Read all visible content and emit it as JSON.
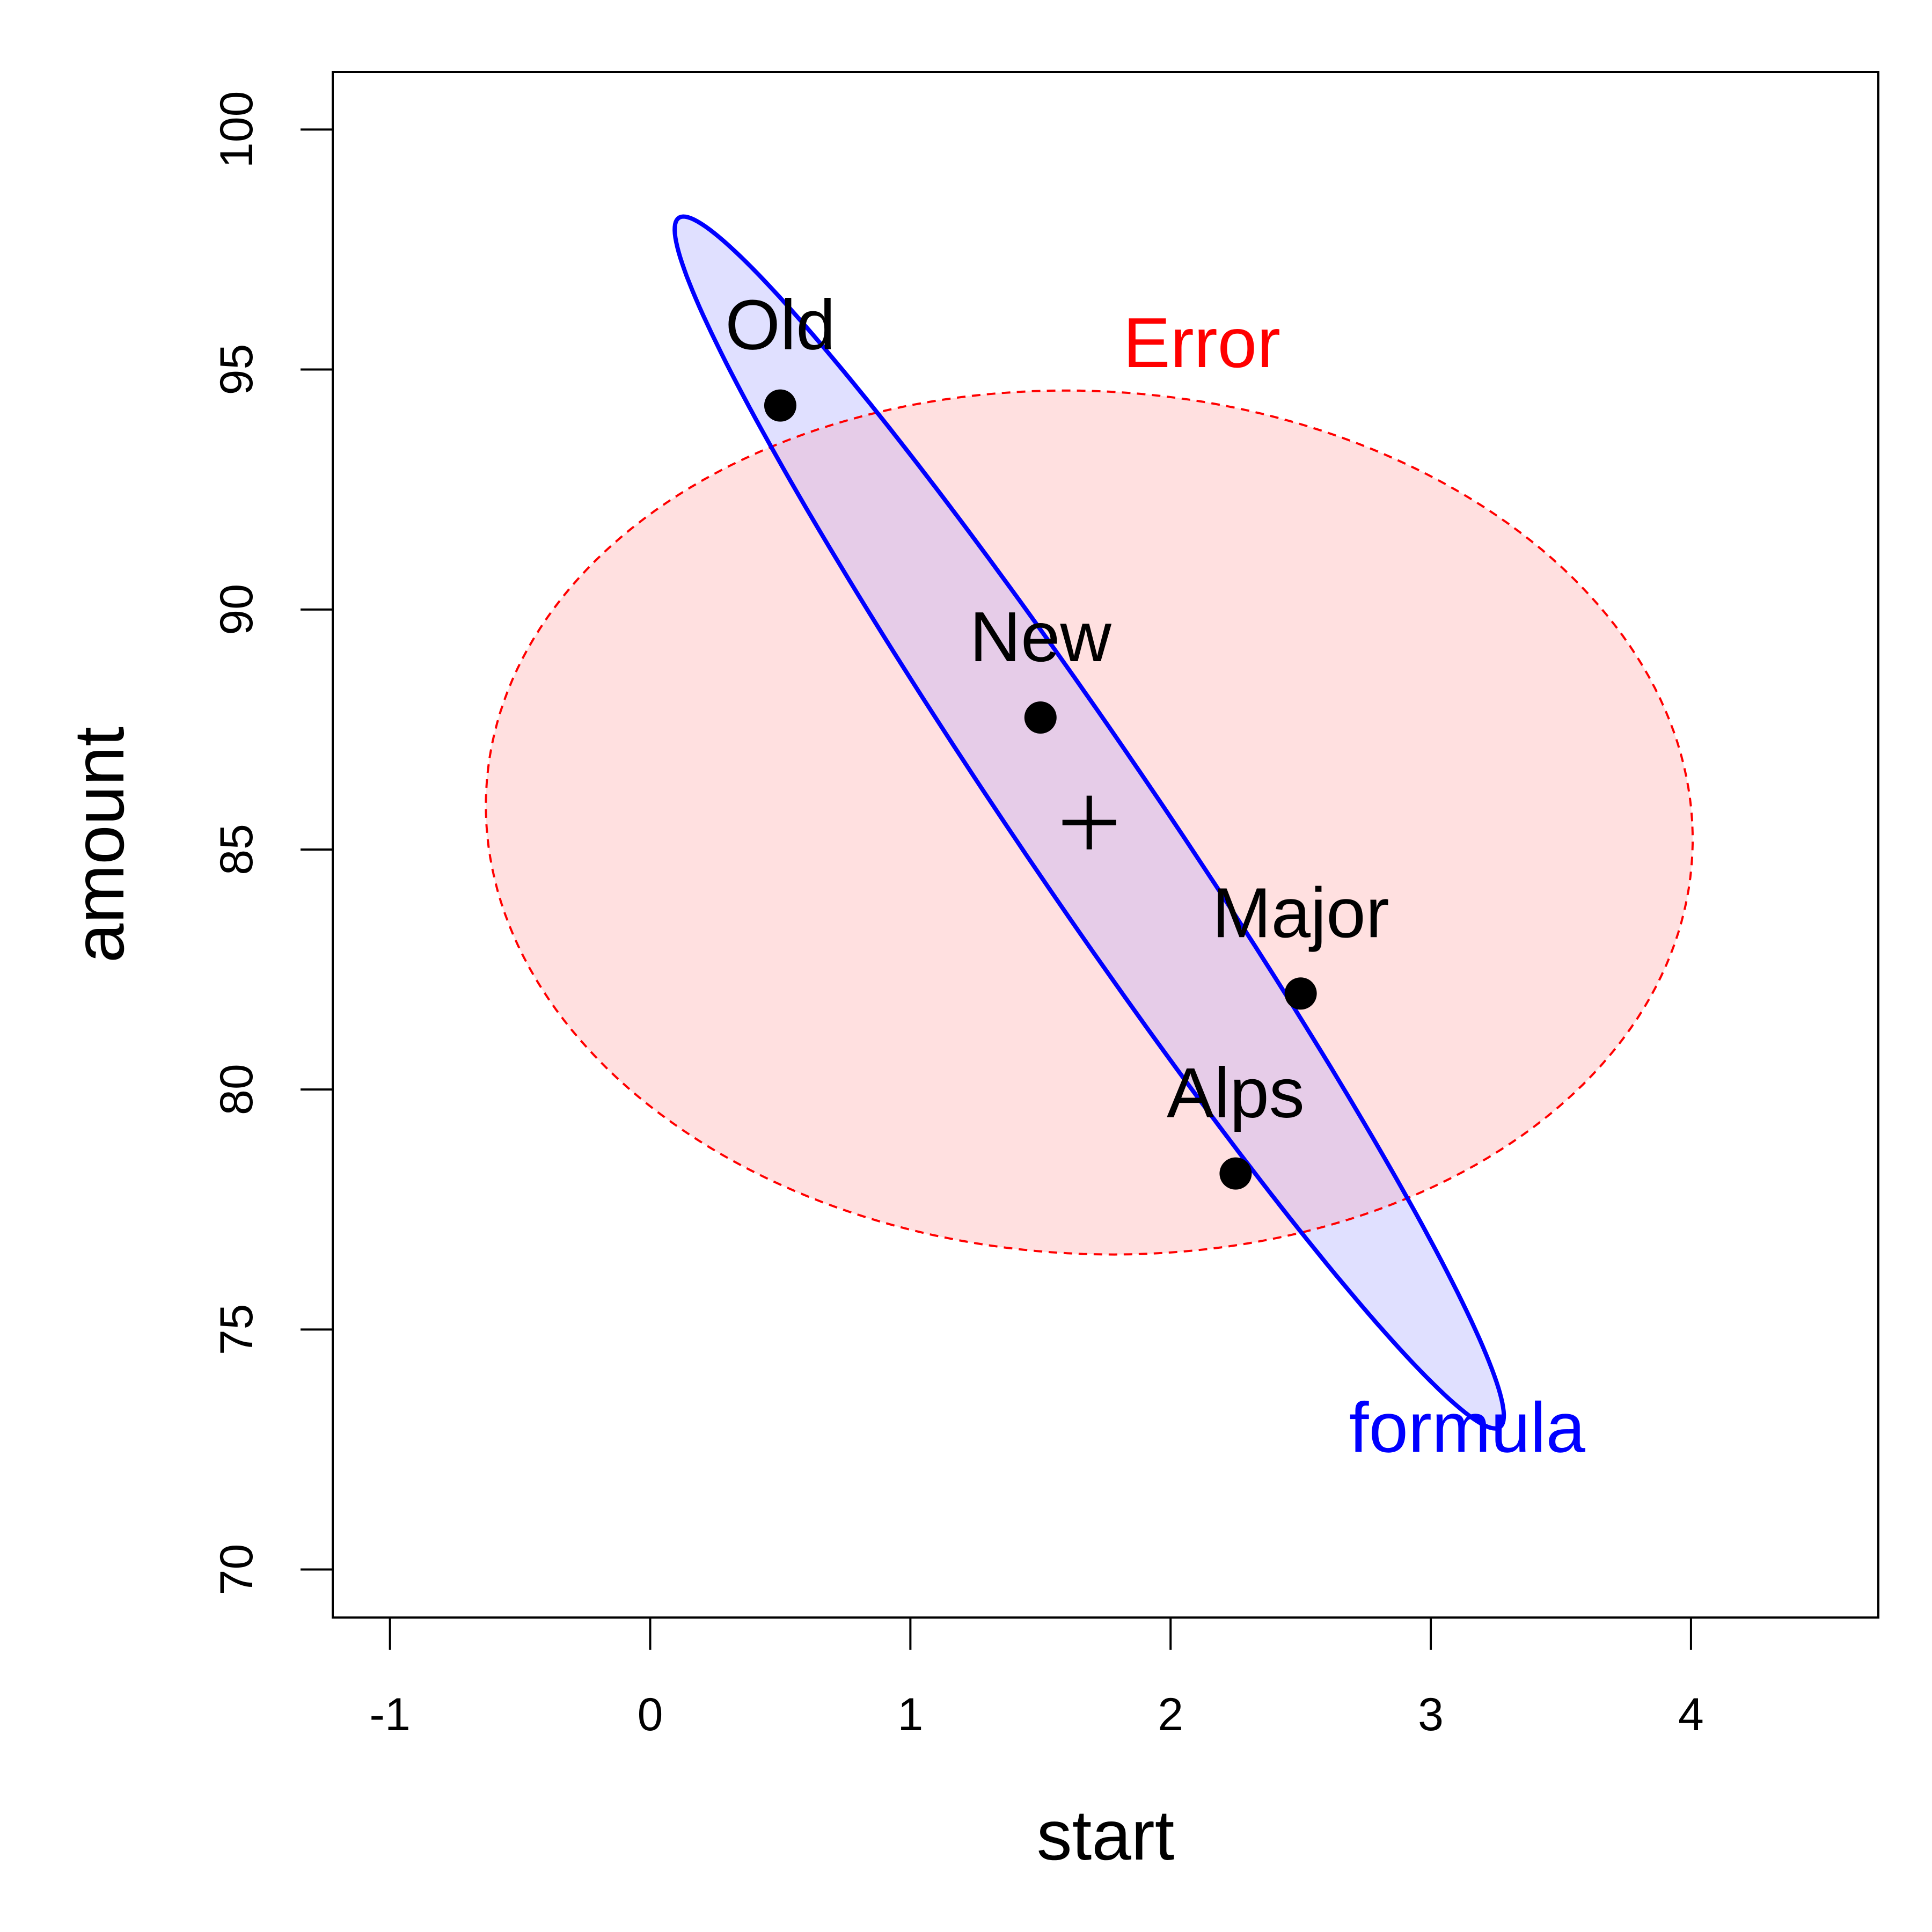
{
  "chart_data": {
    "type": "scatter",
    "title": "",
    "xlabel": "start",
    "ylabel": "amount",
    "xlim": [
      -1.22,
      4.72
    ],
    "ylim": [
      69.0,
      101.2
    ],
    "x_ticks": [
      -1,
      0,
      1,
      2,
      3,
      4
    ],
    "y_ticks": [
      70,
      75,
      80,
      85,
      90,
      95,
      100
    ],
    "x_tick_labels": [
      "-1",
      "0",
      "1",
      "2",
      "3",
      "4"
    ],
    "y_tick_labels": [
      "70",
      "75",
      "80",
      "85",
      "90",
      "95",
      "100"
    ],
    "grid": false,
    "points": [
      {
        "label": "Old",
        "x": 0.5,
        "y": 94.25
      },
      {
        "label": "New",
        "x": 1.5,
        "y": 87.75
      },
      {
        "label": "Major",
        "x": 2.5,
        "y": 82.0
      },
      {
        "label": "Alps",
        "x": 2.25,
        "y": 78.25
      }
    ],
    "centroid": {
      "x": 1.6875,
      "y": 85.5625,
      "marker": "+"
    },
    "ellipses": [
      {
        "label": "Error",
        "color": "#ff0000",
        "fill": "#ffe0e0",
        "line_style": "dashed",
        "center": [
          1.6875,
          85.5625
        ],
        "x_extent": [
          -0.63,
          4.0
        ],
        "y_extent": [
          76.6,
          94.6
        ]
      },
      {
        "label": "formula",
        "color": "#0000ff",
        "fill": "#e0e0ff",
        "line_style": "solid",
        "center": [
          1.6875,
          85.5625
        ],
        "x_extent": [
          0.16,
          3.22
        ],
        "y_extent": [
          73.7,
          97.4
        ]
      }
    ]
  }
}
